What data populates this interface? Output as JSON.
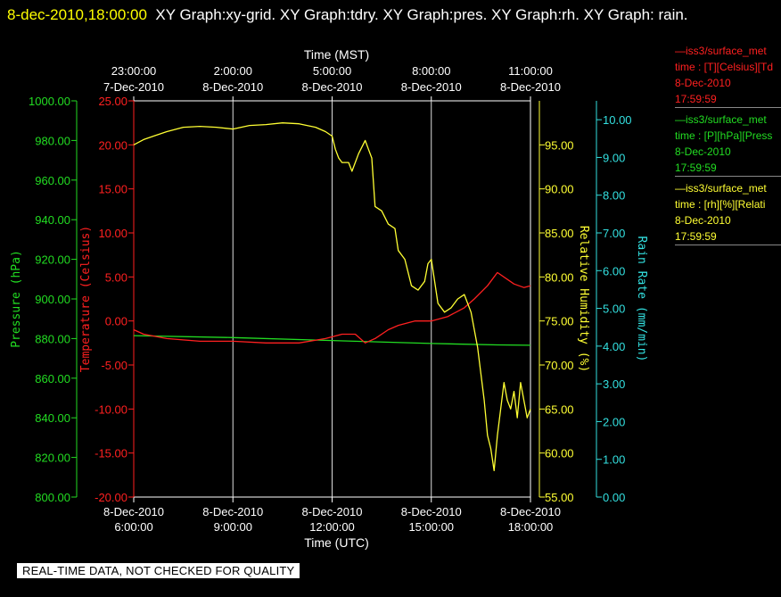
{
  "header": {
    "date": "8-dec-2010,18:00:00",
    "titles": "XY Graph:xy-grid.  XY Graph:tdry.  XY Graph:pres.  XY Graph:rh.  XY Graph: rain."
  },
  "legend": [
    {
      "name": "—iss3/surface_met",
      "units": "time : [T][Celsius][Td",
      "date": "8-Dec-2010",
      "time": "17:59:59",
      "color": "#ff2020"
    },
    {
      "name": "—iss3/surface_met",
      "units": "time : [P][hPa][Press",
      "date": "8-Dec-2010",
      "time": "17:59:59",
      "color": "#22dd22"
    },
    {
      "name": "—iss3/surface_met",
      "units": "time : [rh][%][Relati",
      "date": "8-Dec-2010",
      "time": "17:59:59",
      "color": "#ffff33"
    }
  ],
  "notice": "REAL-TIME DATA, NOT CHECKED FOR QUALITY",
  "chart_data": {
    "type": "line",
    "top_axis": {
      "label": "Time (MST)",
      "ticks": [
        {
          "time": "23:00:00",
          "date": "7-Dec-2010"
        },
        {
          "time": "2:00:00",
          "date": "8-Dec-2010"
        },
        {
          "time": "5:00:00",
          "date": "8-Dec-2010"
        },
        {
          "time": "8:00:00",
          "date": "8-Dec-2010"
        },
        {
          "time": "11:00:00",
          "date": "8-Dec-2010"
        }
      ]
    },
    "bottom_axis": {
      "label": "Time (UTC)",
      "ticks": [
        {
          "date": "8-Dec-2010",
          "time": "6:00:00"
        },
        {
          "date": "8-Dec-2010",
          "time": "9:00:00"
        },
        {
          "date": "8-Dec-2010",
          "time": "12:00:00"
        },
        {
          "date": "8-Dec-2010",
          "time": "15:00:00"
        },
        {
          "date": "8-Dec-2010",
          "time": "18:00:00"
        }
      ]
    },
    "x_hours_utc_range": [
      6,
      18
    ],
    "axes": {
      "pressure": {
        "label": "Pressure (hPa)",
        "range": [
          800,
          1000
        ],
        "color": "#22dd22",
        "ticks": [
          "1000.00",
          "980.00",
          "960.00",
          "940.00",
          "920.00",
          "900.00",
          "880.00",
          "860.00",
          "840.00",
          "820.00",
          "800.00"
        ]
      },
      "temperature": {
        "label": "Temperature (Celsius)",
        "range": [
          -20,
          25
        ],
        "color": "#ff2020",
        "ticks": [
          "25.00",
          "20.00",
          "15.00",
          "10.00",
          "5.00",
          "0.00",
          "-5.00",
          "-10.00",
          "-15.00",
          "-20.00"
        ]
      },
      "rh": {
        "label": "Relative Humidity (%)",
        "range": [
          55,
          100
        ],
        "color": "#ffff33",
        "ticks": [
          "95.00",
          "90.00",
          "85.00",
          "80.00",
          "75.00",
          "70.00",
          "65.00",
          "60.00",
          "55.00"
        ]
      },
      "rain": {
        "label": "Rain Rate (mm/min)",
        "range": [
          0,
          10.5
        ],
        "color": "#33e0e0",
        "ticks": [
          "10.00",
          "9.00",
          "8.00",
          "7.00",
          "6.00",
          "5.00",
          "4.00",
          "3.00",
          "2.00",
          "1.00",
          "0.00"
        ]
      }
    },
    "series": [
      {
        "name": "Pressure",
        "axis": "pressure",
        "color": "#22dd22",
        "x": [
          6.0,
          9.0,
          12.0,
          15.0,
          17.0,
          18.0
        ],
        "y": [
          881.5,
          880.5,
          879.0,
          877.5,
          876.8,
          876.6
        ]
      },
      {
        "name": "Temperature",
        "axis": "temperature",
        "color": "#ff2020",
        "x": [
          6.0,
          6.3,
          7.0,
          8.0,
          9.0,
          10.0,
          11.0,
          11.8,
          12.3,
          12.7,
          13.0,
          13.3,
          13.7,
          14.0,
          14.5,
          15.0,
          15.5,
          16.0,
          16.3,
          16.7,
          17.0,
          17.5,
          17.8,
          18.0
        ],
        "y": [
          -1.0,
          -1.5,
          -2.0,
          -2.3,
          -2.3,
          -2.5,
          -2.5,
          -2.0,
          -1.5,
          -1.5,
          -2.5,
          -2.0,
          -1.0,
          -0.5,
          0.0,
          0.0,
          0.5,
          1.5,
          2.5,
          4.0,
          5.5,
          4.2,
          3.8,
          4.0
        ]
      },
      {
        "name": "Relative Humidity",
        "axis": "rh",
        "color": "#ffff33",
        "x": [
          6.0,
          6.3,
          6.6,
          7.0,
          7.5,
          8.0,
          8.5,
          9.0,
          9.5,
          10.0,
          10.5,
          11.0,
          11.5,
          11.8,
          12.0,
          12.1,
          12.2,
          12.3,
          12.5,
          12.6,
          12.8,
          13.0,
          13.1,
          13.2,
          13.3,
          13.5,
          13.7,
          13.9,
          14.0,
          14.2,
          14.4,
          14.6,
          14.8,
          14.9,
          15.0,
          15.2,
          15.4,
          15.6,
          15.8,
          16.0,
          16.2,
          16.4,
          16.5,
          16.6,
          16.7,
          16.8,
          16.9,
          17.0,
          17.1,
          17.2,
          17.3,
          17.4,
          17.5,
          17.6,
          17.7,
          17.8,
          17.9,
          18.0
        ],
        "y": [
          95.0,
          95.6,
          96.0,
          96.5,
          97.0,
          97.1,
          97.0,
          96.8,
          97.2,
          97.3,
          97.5,
          97.4,
          97.0,
          96.5,
          96.0,
          94.5,
          93.5,
          93.0,
          93.0,
          92.0,
          94.0,
          95.5,
          94.5,
          93.5,
          88.0,
          87.5,
          86.0,
          85.5,
          83.0,
          82.0,
          79.0,
          78.5,
          79.5,
          81.5,
          82.0,
          77.0,
          76.0,
          76.5,
          77.5,
          78.0,
          76.0,
          72.0,
          69.0,
          66.0,
          62.0,
          60.5,
          58.0,
          62.0,
          65.0,
          68.0,
          66.0,
          65.0,
          67.0,
          64.0,
          68.0,
          66.0,
          64.0,
          65.0
        ]
      }
    ]
  }
}
